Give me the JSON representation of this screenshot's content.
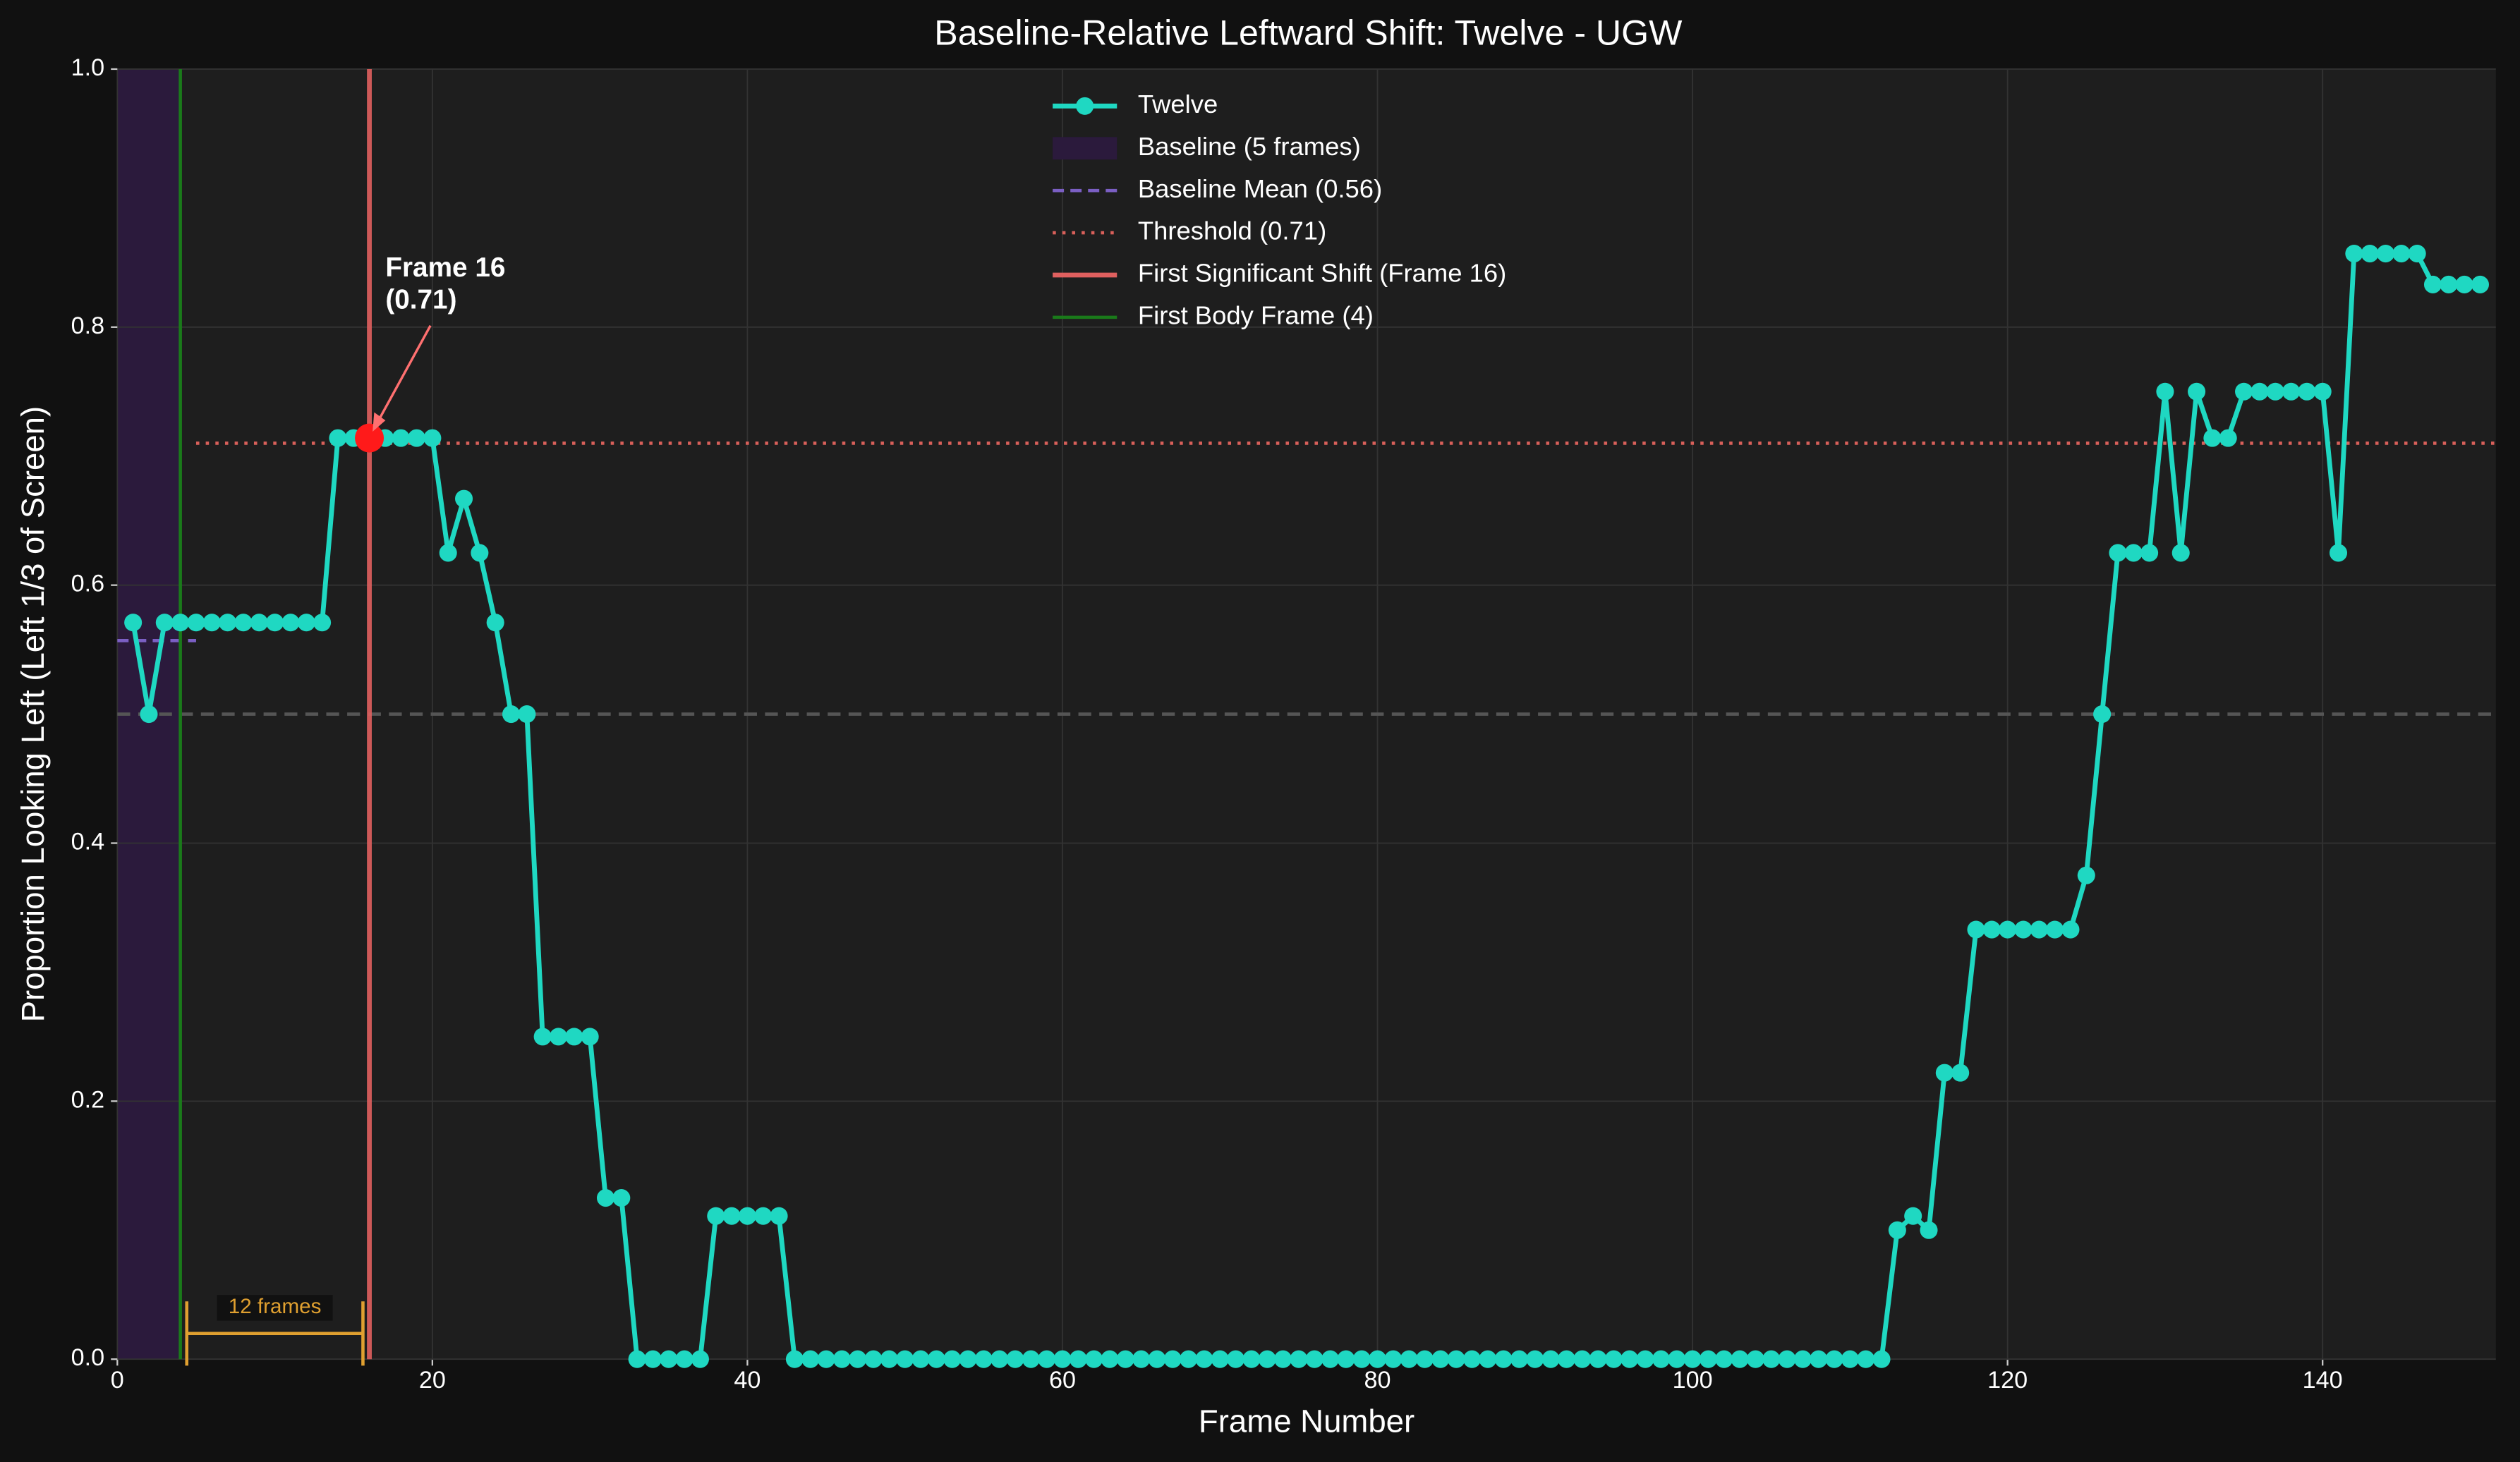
{
  "chart_data": {
    "type": "line",
    "title": "Baseline-Relative Leftward Shift: Twelve - UGW",
    "x_label": "Frame Number",
    "y_label": "Proportion Looking Left (Left 1/3 of Screen)",
    "xlim": [
      0,
      151
    ],
    "ylim": [
      0,
      1
    ],
    "xticks": [
      0,
      20,
      40,
      60,
      80,
      100,
      120,
      140
    ],
    "yticks": [
      {
        "value": 0,
        "label": "0.0"
      },
      0.2,
      0.4,
      0.6,
      0.8,
      {
        "value": 1,
        "label": "1.0"
      }
    ],
    "grid": true,
    "legend": "upper center",
    "x": [
      1,
      2,
      3,
      4,
      5,
      6,
      7,
      8,
      9,
      10,
      11,
      12,
      13,
      14,
      15,
      16,
      17,
      18,
      19,
      20,
      21,
      22,
      23,
      24,
      25,
      26,
      27,
      28,
      29,
      30,
      31,
      32,
      33,
      34,
      35,
      36,
      37,
      38,
      39,
      40,
      41,
      42,
      43,
      44,
      45,
      46,
      47,
      48,
      49,
      50,
      51,
      52,
      53,
      54,
      55,
      56,
      57,
      58,
      59,
      60,
      61,
      62,
      63,
      64,
      65,
      66,
      67,
      68,
      69,
      70,
      71,
      72,
      73,
      74,
      75,
      76,
      77,
      78,
      79,
      80,
      81,
      82,
      83,
      84,
      85,
      86,
      87,
      88,
      89,
      90,
      91,
      92,
      93,
      94,
      95,
      96,
      97,
      98,
      99,
      100,
      101,
      102,
      103,
      104,
      105,
      106,
      107,
      108,
      109,
      110,
      111,
      112,
      113,
      114,
      115,
      116,
      117,
      118,
      119,
      120,
      121,
      122,
      123,
      124,
      125,
      126,
      127,
      128,
      129,
      130,
      131,
      132,
      133,
      134,
      135,
      136,
      137,
      138,
      139,
      140,
      141,
      142,
      143,
      144,
      145,
      146,
      147,
      148,
      149,
      150
    ],
    "series": [
      {
        "name": "Twelve",
        "color": "#1fd8c2",
        "values": [
          0.571,
          0.5,
          0.571,
          0.571,
          0.571,
          0.571,
          0.571,
          0.571,
          0.571,
          0.571,
          0.571,
          0.571,
          0.571,
          0.714,
          0.714,
          0.714,
          0.714,
          0.714,
          0.714,
          0.714,
          0.625,
          0.667,
          0.625,
          0.571,
          0.5,
          0.5,
          0.25,
          0.25,
          0.25,
          0.25,
          0.125,
          0.125,
          0,
          0,
          0,
          0,
          0,
          0.111,
          0.111,
          0.111,
          0.111,
          0.111,
          0,
          0,
          0,
          0,
          0,
          0,
          0,
          0,
          0,
          0,
          0,
          0,
          0,
          0,
          0,
          0,
          0,
          0,
          0,
          0,
          0,
          0,
          0,
          0,
          0,
          0,
          0,
          0,
          0,
          0,
          0,
          0,
          0,
          0,
          0,
          0,
          0,
          0,
          0,
          0,
          0,
          0,
          0,
          0,
          0,
          0,
          0,
          0,
          0,
          0,
          0,
          0,
          0,
          0,
          0,
          0,
          0,
          0,
          0,
          0,
          0,
          0,
          0,
          0,
          0,
          0,
          0,
          0,
          0,
          0,
          0.1,
          0.111,
          0.1,
          0.222,
          0.222,
          0.333,
          0.333,
          0.333,
          0.333,
          0.333,
          0.333,
          0.333,
          0.375,
          0.5,
          0.625,
          0.625,
          0.625,
          0.75,
          0.625,
          0.75,
          0.714,
          0.714,
          0.75,
          0.75,
          0.75,
          0.75,
          0.75,
          0.75,
          0.625,
          0.857,
          0.857,
          0.857,
          0.857,
          0.857,
          0.833,
          0.833,
          0.833,
          0.833
        ]
      }
    ],
    "baseline": {
      "label": "Baseline (5 frames)",
      "color": "#2b1a3c",
      "span": [
        0,
        4
      ]
    },
    "baseline_mean": {
      "label": "Baseline Mean (0.56)",
      "color": "#7b5fc4",
      "value": 0.557,
      "span": [
        0,
        5
      ]
    },
    "threshold": {
      "label": "Threshold (0.71)",
      "color": "#d9605a",
      "value": 0.71,
      "start": 5
    },
    "first_shift": {
      "label": "First Significant Shift (Frame 16)",
      "color": "#e0605f",
      "frame": 16
    },
    "first_body_frame": {
      "label": "First Body Frame (4)",
      "color": "#1a7a1a",
      "frame": 4
    },
    "chance_line": 0.5,
    "annotation": {
      "lines": [
        "Frame 16",
        "(0.71)"
      ],
      "x": 16,
      "y": 0.714,
      "color": "#ff1a1a"
    },
    "bracket": {
      "label": "12 frames",
      "from": 4,
      "to": 16,
      "color": "#e0a030"
    }
  }
}
